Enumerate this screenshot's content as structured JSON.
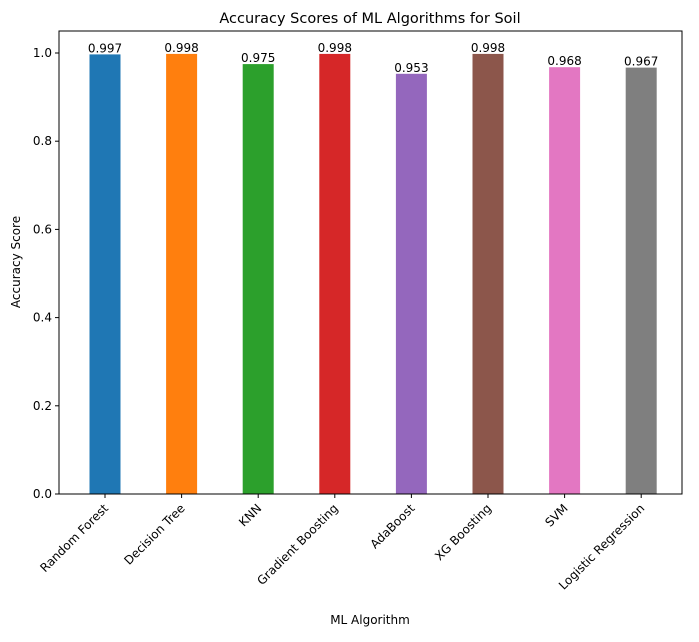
{
  "chart_data": {
    "type": "bar",
    "title": "Accuracy Scores of ML Algorithms for Soil",
    "xlabel": "ML Algorithm",
    "ylabel": "Accuracy Score",
    "categories": [
      "Random Forest",
      "Decision Tree",
      "KNN",
      "Gradient Boosting",
      "AdaBoost",
      "XG Boosting",
      "SVM",
      "Logistic Regression"
    ],
    "values": [
      0.997,
      0.998,
      0.975,
      0.998,
      0.953,
      0.998,
      0.968,
      0.967
    ],
    "data_labels": [
      "0.997",
      "0.998",
      "0.975",
      "0.998",
      "0.953",
      "0.998",
      "0.968",
      "0.967"
    ],
    "colors": [
      "#1f77b4",
      "#ff7f0e",
      "#2ca02c",
      "#d62728",
      "#9467bd",
      "#8c564b",
      "#e377c2",
      "#7f7f7f"
    ],
    "ylim": [
      0,
      1.05
    ],
    "yticks": [
      "0.0",
      "0.2",
      "0.4",
      "0.6",
      "0.8",
      "1.0"
    ],
    "grid": false,
    "legend": "none"
  }
}
